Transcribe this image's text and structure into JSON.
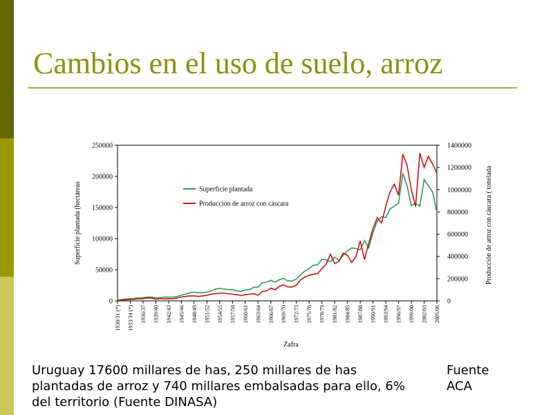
{
  "slide": {
    "title": "Cambios en el uso de suelo, arroz",
    "caption": "Uruguay 17600 millares de has, 250 millares de has plantadas de arroz y 740 millares embalsadas para ello, 6% del territorio (Fuente DINASA)",
    "source": "Fuente ACA"
  },
  "chart_data": {
    "type": "line",
    "x_label": "Zafra",
    "y_label": "Superficie plantada (hectáreas",
    "y2_label": "Producción de arroz con cáscara ( tonelada",
    "categories": [
      "1930/31 (*)",
      null,
      null,
      "1933/34 (*)",
      null,
      null,
      "1936/37",
      null,
      null,
      "1939/40",
      null,
      null,
      "1942/43",
      null,
      null,
      "1945/46",
      null,
      null,
      "1948/49",
      null,
      null,
      "1951/52",
      null,
      null,
      "1954/55",
      null,
      null,
      "1957/58",
      null,
      null,
      "1960/61",
      null,
      null,
      "1963/64",
      null,
      null,
      "1966/67",
      null,
      null,
      "1969/70",
      null,
      null,
      "1972/73",
      null,
      null,
      "1975/76",
      null,
      null,
      "1978/79",
      null,
      null,
      "1981/82",
      null,
      null,
      "1984/85",
      null,
      null,
      "1987/88",
      null,
      null,
      "1990/91",
      null,
      null,
      "1993/94",
      null,
      null,
      "1996/97",
      null,
      null,
      "1999/00",
      null,
      null,
      "2002/03",
      null,
      null,
      "2005/06"
    ],
    "series": [
      {
        "name": "Superficie plantada",
        "color": "#2e9a5a",
        "axis": "y",
        "values": [
          1000,
          2000,
          3000,
          3500,
          4000,
          5000,
          5000,
          6000,
          6000,
          5000,
          5000,
          6000,
          6000,
          6000,
          7000,
          9000,
          11000,
          13000,
          14000,
          13000,
          13000,
          14000,
          16000,
          19000,
          20000,
          19000,
          18000,
          18000,
          16000,
          15000,
          18000,
          18000,
          22000,
          22000,
          29000,
          30000,
          33000,
          30000,
          34000,
          36000,
          32000,
          32000,
          35000,
          42000,
          48000,
          52000,
          57000,
          58000,
          67000,
          66000,
          63000,
          70000,
          65000,
          73000,
          80000,
          85000,
          84000,
          82000,
          97000,
          85000,
          110000,
          128000,
          135000,
          134000,
          148000,
          152000,
          157000,
          205000,
          185000,
          153000,
          157000,
          152000,
          195000,
          185000,
          175000,
          142000
        ]
      },
      {
        "name": "Producción de arroz con cáscara",
        "color": "#cc1111",
        "axis": "y2",
        "values": [
          5000,
          8000,
          10000,
          12000,
          15000,
          18000,
          20000,
          25000,
          25000,
          15000,
          20000,
          18000,
          20000,
          20000,
          25000,
          35000,
          40000,
          45000,
          45000,
          40000,
          45000,
          50000,
          60000,
          65000,
          70000,
          70000,
          65000,
          60000,
          55000,
          50000,
          55000,
          60000,
          65000,
          50000,
          85000,
          90000,
          115000,
          100000,
          130000,
          145000,
          125000,
          125000,
          140000,
          190000,
          215000,
          230000,
          240000,
          245000,
          290000,
          330000,
          420000,
          335000,
          355000,
          430000,
          410000,
          345000,
          400000,
          540000,
          370000,
          520000,
          650000,
          750000,
          700000,
          850000,
          980000,
          1050000,
          950000,
          1320000,
          1220000,
          1000000,
          850000,
          1330000,
          1200000,
          1300000,
          1230000,
          1150000
        ]
      }
    ],
    "ylim": [
      0,
      250000
    ],
    "yticks": [
      0,
      50000,
      100000,
      150000,
      200000,
      250000
    ],
    "y2lim": [
      0,
      1400000
    ],
    "y2ticks": [
      0,
      200000,
      400000,
      600000,
      800000,
      1000000,
      1200000,
      1400000
    ],
    "grid": false
  }
}
